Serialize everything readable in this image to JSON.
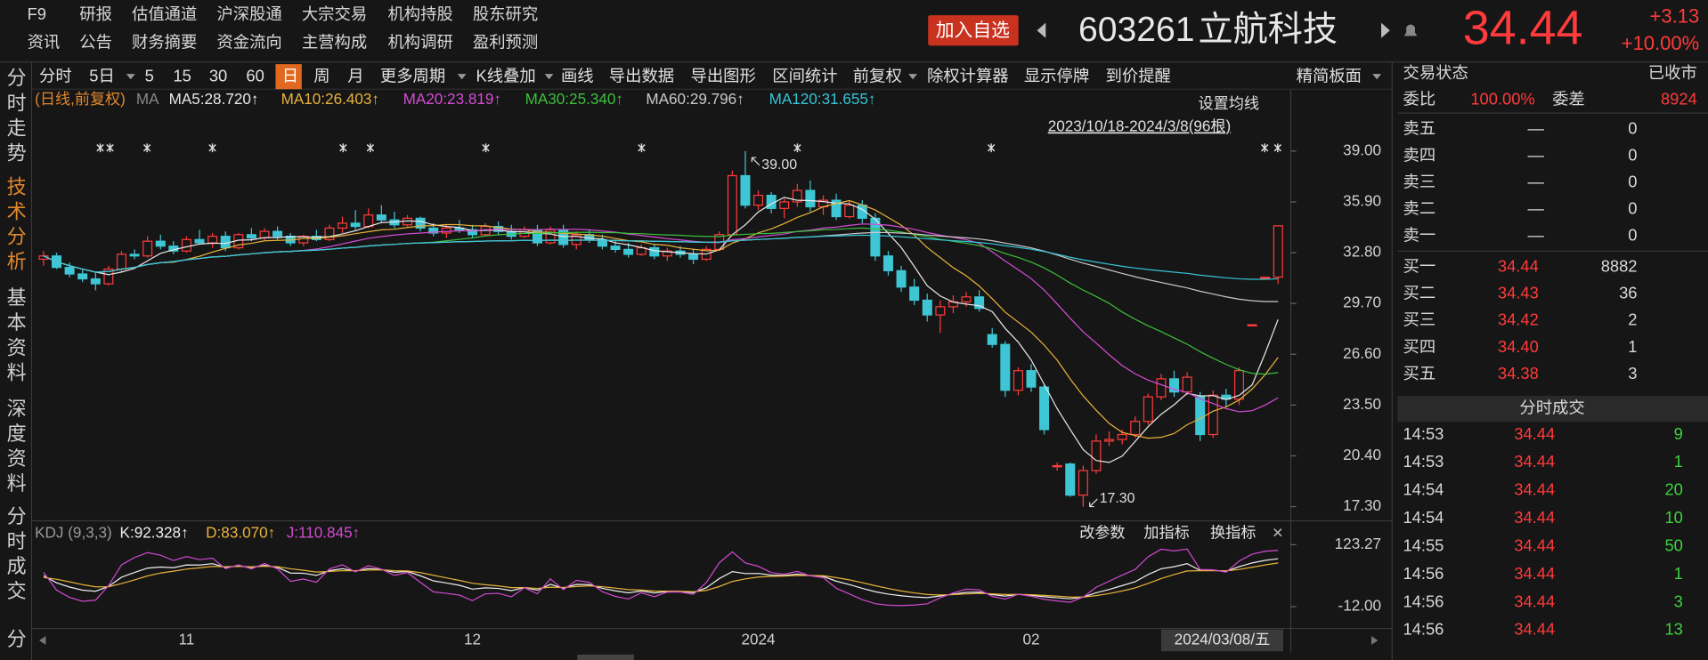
{
  "menu": {
    "row1": [
      "F9",
      "研报",
      "估值通道",
      "沪深股通",
      "大宗交易",
      "机构持股",
      "股东研究"
    ],
    "row2": [
      "资讯",
      "公告",
      "财务摘要",
      "资金流向",
      "主营构成",
      "机构调研",
      "盈利预测"
    ]
  },
  "header": {
    "watch_button": "加入自选",
    "code": "603261",
    "name": "立航科技",
    "price": 34.44,
    "change": "+3.13",
    "change_pct": "+10.00%"
  },
  "side_tabs": {
    "items": [
      "分时走势",
      "技术分析",
      "基本资料",
      "深度资料",
      "分时成交",
      "分"
    ],
    "active": 1
  },
  "toolbar": {
    "items": [
      "分时",
      "5日",
      "5",
      "15",
      "30",
      "60",
      "日",
      "周",
      "月",
      "更多周期",
      "K线叠加",
      "画线",
      "导出数据",
      "导出图形",
      "区间统计",
      "前复权",
      "除权计算器",
      "显示停牌",
      "到价提醒"
    ],
    "active": 6,
    "layout_button": "精简板面"
  },
  "chart_data": {
    "type": "candlestick",
    "period_label": "(日线,前复权)",
    "ma_title": "MA",
    "ma": [
      {
        "name": "MA5:28.720↑",
        "color": "#e8e8e8"
      },
      {
        "name": "MA10:26.403↑",
        "color": "#e8b23a"
      },
      {
        "name": "MA20:23.819↑",
        "color": "#d44cd4"
      },
      {
        "name": "MA30:25.340↑",
        "color": "#3cbf3c"
      },
      {
        "name": "MA60:29.796↑",
        "color": "#c8c8c8"
      },
      {
        "name": "MA120:31.655↑",
        "color": "#35c4d6"
      }
    ],
    "ma_settings": "设置均线",
    "range_label": "2023/10/18-2024/3/8(96根)",
    "categories": [
      null,
      null,
      null,
      null,
      null,
      null,
      null,
      null,
      null,
      null,
      null,
      "11",
      null,
      null,
      null,
      null,
      null,
      null,
      null,
      null,
      null,
      null,
      null,
      null,
      null,
      null,
      null,
      null,
      null,
      null,
      null,
      null,
      null,
      "12",
      null,
      null,
      null,
      null,
      null,
      null,
      null,
      null,
      null,
      null,
      null,
      null,
      null,
      null,
      null,
      null,
      null,
      null,
      null,
      null,
      null,
      "2024",
      null,
      null,
      null,
      null,
      null,
      null,
      null,
      null,
      null,
      null,
      null,
      null,
      null,
      null,
      null,
      null,
      null,
      null,
      null,
      null,
      "02",
      null,
      null,
      null,
      null,
      null,
      null,
      null,
      null,
      null,
      null,
      null,
      null,
      null,
      null,
      null,
      null,
      null,
      null,
      null
    ],
    "open": [
      32.4,
      32.6,
      31.9,
      31.5,
      31.2,
      30.9,
      31.8,
      32.7,
      32.6,
      33.5,
      33.2,
      32.9,
      33.6,
      33.4,
      33.8,
      33.1,
      33.9,
      33.7,
      34.1,
      33.8,
      33.4,
      33.8,
      33.6,
      34.3,
      34.6,
      34.4,
      35.1,
      34.8,
      34.5,
      34.9,
      34.3,
      34.0,
      34.3,
      34.2,
      33.9,
      34.4,
      34.1,
      33.8,
      34.2,
      33.4,
      34.2,
      33.3,
      33.9,
      33.6,
      33.2,
      33.0,
      32.7,
      33.1,
      32.6,
      32.9,
      32.7,
      32.4,
      33.0,
      33.9,
      37.5,
      35.7,
      36.3,
      35.5,
      35.9,
      36.6,
      35.6,
      36.0,
      35.0,
      35.7,
      34.9,
      32.6,
      31.7,
      30.7,
      29.9,
      29.0,
      29.5,
      29.8,
      30.1,
      27.8,
      27.2,
      24.4,
      25.6,
      24.6,
      19.8,
      19.9,
      18.0,
      19.5,
      21.3,
      21.4,
      21.7,
      22.5,
      24.0,
      25.1,
      24.3,
      24.0,
      21.7,
      24.1,
      23.86,
      28.4,
      31.3,
      31.31
    ],
    "high": [
      32.9,
      32.8,
      32.2,
      31.8,
      31.6,
      32.0,
      32.9,
      33.0,
      33.8,
      33.9,
      33.5,
      33.8,
      34.2,
      34.0,
      34.1,
      34.0,
      34.3,
      34.3,
      34.4,
      34.0,
      33.9,
      34.2,
      34.5,
      35.0,
      35.4,
      35.5,
      35.7,
      35.3,
      35.1,
      35.0,
      34.6,
      34.5,
      34.8,
      34.5,
      34.6,
      34.7,
      34.5,
      34.4,
      34.5,
      34.4,
      34.5,
      34.1,
      34.2,
      33.9,
      33.6,
      33.4,
      33.3,
      33.3,
      33.1,
      33.2,
      33.0,
      33.2,
      34.1,
      37.8,
      39.0,
      36.6,
      36.5,
      36.1,
      37.0,
      37.2,
      36.3,
      36.4,
      36.0,
      36.0,
      35.2,
      32.9,
      32.0,
      31.2,
      30.3,
      29.9,
      30.2,
      30.4,
      30.5,
      28.2,
      27.4,
      25.8,
      26.0,
      24.8,
      20.0,
      20.0,
      19.8,
      21.7,
      21.9,
      22.0,
      22.8,
      24.2,
      25.4,
      25.6,
      25.5,
      24.3,
      24.4,
      24.5,
      25.8,
      28.4,
      31.3,
      34.44
    ],
    "low": [
      32.0,
      31.8,
      31.3,
      31.0,
      30.5,
      30.8,
      31.6,
      32.4,
      32.5,
      33.0,
      32.7,
      32.8,
      33.3,
      33.1,
      32.9,
      33.0,
      33.5,
      33.5,
      33.6,
      33.2,
      33.2,
      33.5,
      33.5,
      34.0,
      34.2,
      34.3,
      34.6,
      34.3,
      34.4,
      34.1,
      33.8,
      33.7,
      34.0,
      33.7,
      33.8,
      33.9,
      33.6,
      33.7,
      33.2,
      33.3,
      33.1,
      33.0,
      33.4,
      33.0,
      32.8,
      32.5,
      32.6,
      32.4,
      32.3,
      32.5,
      32.1,
      32.3,
      32.9,
      33.8,
      35.5,
      35.4,
      35.2,
      34.9,
      35.6,
      35.3,
      35.1,
      34.8,
      34.9,
      34.6,
      32.3,
      31.4,
      30.4,
      29.6,
      28.6,
      27.9,
      29.1,
      29.5,
      29.2,
      27.0,
      24.0,
      24.1,
      24.3,
      21.7,
      19.5,
      17.9,
      17.3,
      19.3,
      21.0,
      21.1,
      21.5,
      22.3,
      23.8,
      24.0,
      24.1,
      21.3,
      21.5,
      23.4,
      23.5,
      28.4,
      31.3,
      30.9
    ],
    "close": [
      32.6,
      31.9,
      31.5,
      31.2,
      30.9,
      31.8,
      32.7,
      32.6,
      33.5,
      33.2,
      32.9,
      33.6,
      33.4,
      33.8,
      33.1,
      33.9,
      33.7,
      34.1,
      33.8,
      33.4,
      33.8,
      33.6,
      34.3,
      34.6,
      34.4,
      35.1,
      34.8,
      34.5,
      34.9,
      34.3,
      34.0,
      34.3,
      34.2,
      33.9,
      34.4,
      34.1,
      33.8,
      34.2,
      33.4,
      34.2,
      33.3,
      33.9,
      33.6,
      33.2,
      33.0,
      32.7,
      33.1,
      32.6,
      32.9,
      32.7,
      32.4,
      33.0,
      33.9,
      37.5,
      35.7,
      36.3,
      35.5,
      35.9,
      36.6,
      35.6,
      36.0,
      35.0,
      35.7,
      34.9,
      32.6,
      31.7,
      30.7,
      29.9,
      29.0,
      29.5,
      29.8,
      30.1,
      29.4,
      27.2,
      24.4,
      25.6,
      24.6,
      22.0,
      19.8,
      18.0,
      19.5,
      21.3,
      21.4,
      21.7,
      22.5,
      24.0,
      25.1,
      24.3,
      25.2,
      21.7,
      24.1,
      23.86,
      25.6,
      28.4,
      31.3,
      34.44
    ],
    "up_color": "#ff3b3b",
    "down_color": "#3ec6d4",
    "ylim": [
      16.5,
      41.32
    ],
    "yticks": [
      {
        "value": 17.3,
        "label": "17.30"
      },
      {
        "value": 20.4,
        "label": "20.40"
      },
      {
        "value": 23.5,
        "label": "23.50"
      },
      {
        "value": 26.6,
        "label": "26.60"
      },
      {
        "value": 29.7,
        "label": "29.70"
      },
      {
        "value": 32.8,
        "label": "32.80"
      },
      {
        "value": 35.9,
        "label": "35.90"
      },
      {
        "value": 39,
        "label": "39.00"
      }
    ],
    "high_label": {
      "value": 39,
      "label": "39.00"
    },
    "low_label": {
      "value": 17.3,
      "label": "17.30"
    },
    "cursor_label": "2024/03/08/五",
    "indicator": {
      "type": "kdj",
      "title": "KDJ (9,3,3)",
      "series": [
        {
          "name": "K:92.328↑",
          "color": "#eeeeee"
        },
        {
          "name": "D:83.070↑",
          "color": "#e8b23a"
        },
        {
          "name": "J:110.845↑",
          "color": "#d04ad0"
        }
      ],
      "ylim": [
        -59.5,
        173.1
      ],
      "yticks": [
        {
          "value": -12,
          "label": "-12.00"
        },
        {
          "value": 123.27,
          "label": "123.27"
        }
      ],
      "buttons": [
        "改参数",
        "加指标",
        "换指标"
      ]
    }
  },
  "quote": {
    "status_label": "交易状态",
    "status": "已收市",
    "ratio_label": "委比",
    "ratio": "100.00%",
    "diff_label": "委差",
    "diff": 8924,
    "asks": [
      {
        "label": "卖五",
        "price": "—",
        "volume": 0
      },
      {
        "label": "卖四",
        "price": "—",
        "volume": 0
      },
      {
        "label": "卖三",
        "price": "—",
        "volume": 0
      },
      {
        "label": "卖二",
        "price": "—",
        "volume": 0
      },
      {
        "label": "卖一",
        "price": "—",
        "volume": 0
      }
    ],
    "bids": [
      {
        "label": "买一",
        "price": "34.44",
        "volume": 8882
      },
      {
        "label": "买二",
        "price": "34.43",
        "volume": 36
      },
      {
        "label": "买三",
        "price": "34.42",
        "volume": 2
      },
      {
        "label": "买四",
        "price": "34.40",
        "volume": 1
      },
      {
        "label": "买五",
        "price": "34.38",
        "volume": 3
      }
    ]
  },
  "trades": {
    "title": "分时成交",
    "rows": [
      {
        "time": "14:53",
        "price": "34.44",
        "volume": 9
      },
      {
        "time": "14:53",
        "price": "34.44",
        "volume": 1
      },
      {
        "time": "14:54",
        "price": "34.44",
        "volume": 20
      },
      {
        "time": "14:54",
        "price": "34.44",
        "volume": 10
      },
      {
        "time": "14:55",
        "price": "34.44",
        "volume": 50
      },
      {
        "time": "14:56",
        "price": "34.44",
        "volume": 1
      },
      {
        "time": "14:56",
        "price": "34.44",
        "volume": 3
      },
      {
        "time": "14:56",
        "price": "34.44",
        "volume": 13
      }
    ]
  }
}
